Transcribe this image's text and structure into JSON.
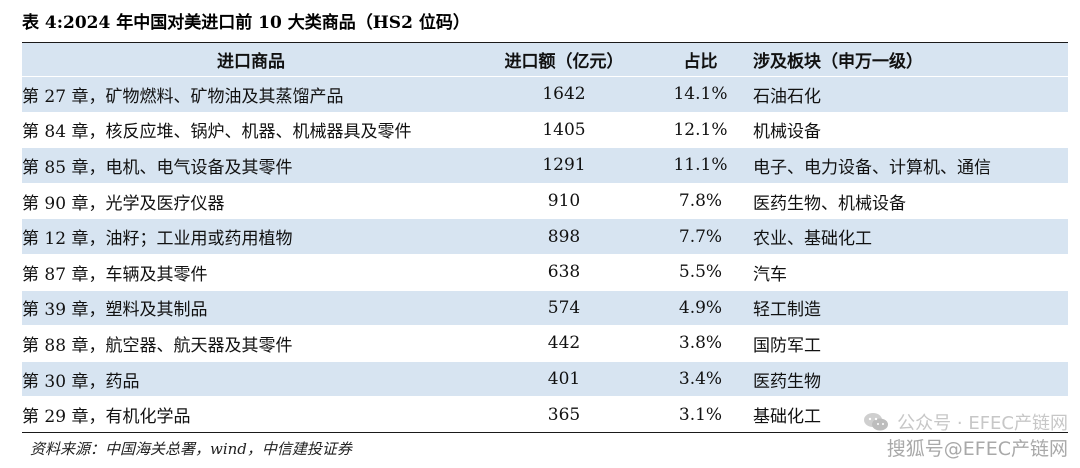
{
  "title": "表 4:2024 年中国对美进口前 10 大类商品（HS2 位码）",
  "columns": [
    "进口商品",
    "进口额（亿元）",
    "占比",
    "涉及板块（申万一级）"
  ],
  "rows": [
    {
      "goods": "第 27 章，矿物燃料、矿物油及其蒸馏产品",
      "amount": "1642",
      "share": "14.1%",
      "sector": "石油石化"
    },
    {
      "goods": "第 84 章，核反应堆、锅炉、机器、机械器具及零件",
      "amount": "1405",
      "share": "12.1%",
      "sector": "机械设备"
    },
    {
      "goods": "第 85 章，电机、电气设备及其零件",
      "amount": "1291",
      "share": "11.1%",
      "sector": "电子、电力设备、计算机、通信"
    },
    {
      "goods": "第 90 章，光学及医疗仪器",
      "amount": "910",
      "share": "7.8%",
      "sector": "医药生物、机械设备"
    },
    {
      "goods": "第 12 章，油籽；工业用或药用植物",
      "amount": "898",
      "share": "7.7%",
      "sector": "农业、基础化工"
    },
    {
      "goods": "第 87 章，车辆及其零件",
      "amount": "638",
      "share": "5.5%",
      "sector": "汽车"
    },
    {
      "goods": "第 39 章，塑料及其制品",
      "amount": "574",
      "share": "4.9%",
      "sector": "轻工制造"
    },
    {
      "goods": "第 88 章，航空器、航天器及其零件",
      "amount": "442",
      "share": "3.8%",
      "sector": "国防军工"
    },
    {
      "goods": "第 30 章，药品",
      "amount": "401",
      "share": "3.4%",
      "sector": "医药生物"
    },
    {
      "goods": "第 29 章，有机化学品",
      "amount": "365",
      "share": "3.1%",
      "sector": "基础化工"
    }
  ],
  "source": "资料来源：中国海关总署，wind，中信建投证券",
  "watermark": {
    "line1": "公众号 · EFEC产链网",
    "line2": "搜狐号@EFEC产链网",
    "icon": "wechat-icon"
  },
  "colors": {
    "band": "#d7e4f1",
    "rule": "#1a1a1a"
  }
}
